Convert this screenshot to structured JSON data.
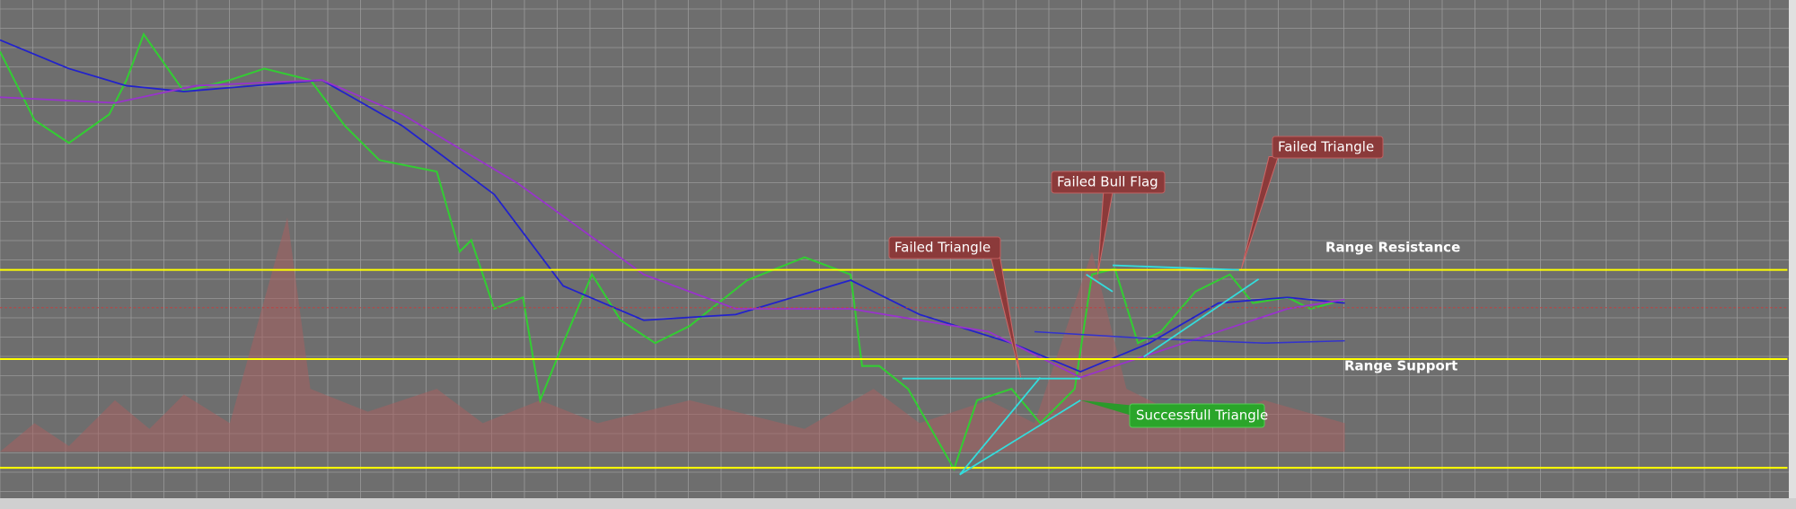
{
  "annotations": [
    {
      "label": "Failed Triangle"
    },
    {
      "label": "Failed Bull Flag"
    },
    {
      "label": "Failed Triangle"
    },
    {
      "label": "Successfull Triangle"
    }
  ],
  "levels": [
    {
      "label": "Range Resistance"
    },
    {
      "label": "Range Support"
    }
  ]
}
